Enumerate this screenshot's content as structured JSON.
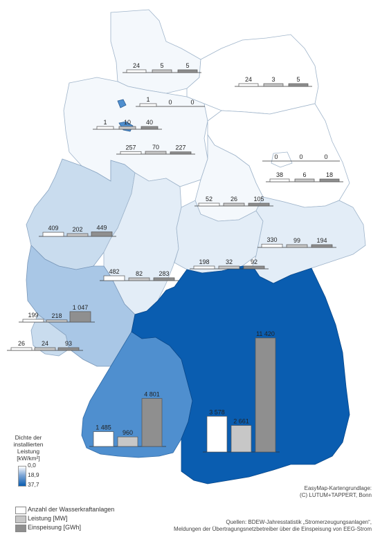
{
  "colors": {
    "lowest": "#f4f8fc",
    "low": "#e3edf7",
    "light": "#c9dcee",
    "medium": "#a9c7e6",
    "strong": "#4f8fcf",
    "deep": "#0a5db0",
    "bar_count": "#ffffff",
    "bar_power": "#c7c7c7",
    "bar_feed": "#8f8f8f"
  },
  "regions": [
    {
      "name": "Schleswig-Holstein",
      "values": [
        "24",
        "5",
        "5"
      ]
    },
    {
      "name": "Mecklenburg-Vorpommern",
      "values": [
        "24",
        "3",
        "5"
      ]
    },
    {
      "name": "Hamburg",
      "values": [
        "1",
        "0",
        "0"
      ]
    },
    {
      "name": "Bremen",
      "values": [
        "1",
        "10",
        "40"
      ]
    },
    {
      "name": "Niedersachsen",
      "values": [
        "257",
        "70",
        "227"
      ]
    },
    {
      "name": "Berlin",
      "values": [
        "0",
        "0",
        "0"
      ]
    },
    {
      "name": "Brandenburg",
      "values": [
        "38",
        "6",
        "18"
      ]
    },
    {
      "name": "Sachsen-Anhalt",
      "values": [
        "52",
        "26",
        "105"
      ]
    },
    {
      "name": "Nordrhein-Westfalen",
      "values": [
        "409",
        "202",
        "449"
      ]
    },
    {
      "name": "Sachsen",
      "values": [
        "330",
        "99",
        "194"
      ]
    },
    {
      "name": "Hessen",
      "values": [
        "482",
        "82",
        "283"
      ]
    },
    {
      "name": "Thüringen",
      "values": [
        "198",
        "32",
        "92"
      ]
    },
    {
      "name": "Rheinland-Pfalz",
      "values": [
        "199",
        "218",
        "1 047"
      ]
    },
    {
      "name": "Saarland",
      "values": [
        "26",
        "24",
        "93"
      ]
    },
    {
      "name": "Baden-Württemberg",
      "values": [
        "1 485",
        "960",
        "4 801"
      ]
    },
    {
      "name": "Bayern",
      "values": [
        "3 578",
        "2 661",
        "11 420"
      ]
    }
  ],
  "legend": {
    "title": "Dichte der installierten Leistung [kW/km²]",
    "scale": [
      "0,0",
      "18,9",
      "37,7"
    ],
    "items": [
      {
        "label": "Anzahl der Wasserkraftanlagen"
      },
      {
        "label": "Leistung [MW]"
      },
      {
        "label": "Einspeisung [GWh]"
      }
    ]
  },
  "credits": {
    "map_line1": "EasyMap-Kartengrundlage:",
    "map_line2": "(C) LUTUM+TAPPERT, Bonn",
    "source_line1": "Quellen: BDEW-Jahresstatistik „Stromerzeugungsanlagen“,",
    "source_line2": "Meldungen der Übertragungsnetzbetreiber über die Einspeisung von EEG-Strom"
  }
}
